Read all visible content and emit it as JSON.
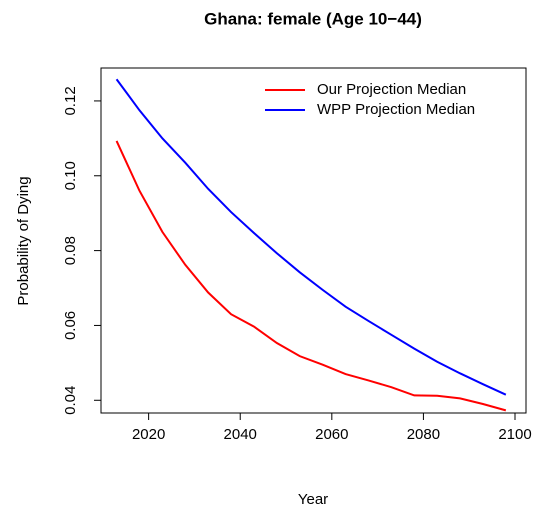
{
  "chart_data": {
    "type": "line",
    "title": "Ghana: female (Age 10−44)",
    "x_label": "Year",
    "y_label": "Probability of Dying",
    "x": [
      2013,
      2018,
      2023,
      2028,
      2033,
      2038,
      2043,
      2048,
      2053,
      2058,
      2063,
      2068,
      2073,
      2078,
      2083,
      2088,
      2093,
      2098
    ],
    "series": [
      {
        "name": "Our Projection Median",
        "color": "#ff0000",
        "values": [
          0.1093,
          0.096,
          0.085,
          0.0762,
          0.0688,
          0.063,
          0.0597,
          0.0553,
          0.0518,
          0.0495,
          0.047,
          0.0453,
          0.0435,
          0.0413,
          0.0412,
          0.0405,
          0.039,
          0.0373
        ]
      },
      {
        "name": "WPP Projection Median",
        "color": "#0000ff",
        "values": [
          0.1258,
          0.1175,
          0.11,
          0.1035,
          0.0965,
          0.0903,
          0.0847,
          0.0793,
          0.0742,
          0.0695,
          0.065,
          0.0612,
          0.0575,
          0.0538,
          0.0503,
          0.0472,
          0.0443,
          0.0415
        ]
      }
    ],
    "xlim": [
      2009.6,
      2102.4
    ],
    "xticks": [
      2020,
      2040,
      2060,
      2080,
      2100
    ],
    "ylim": [
      0.0366,
      0.1288
    ],
    "yticks": [
      {
        "value": 0.04,
        "label": "0.04"
      },
      {
        "value": 0.06,
        "label": "0.06"
      },
      {
        "value": 0.08,
        "label": "0.08"
      },
      {
        "value": 0.1,
        "label": "0.10"
      },
      {
        "value": 0.12,
        "label": "0.12"
      }
    ],
    "legend": "top-right"
  }
}
